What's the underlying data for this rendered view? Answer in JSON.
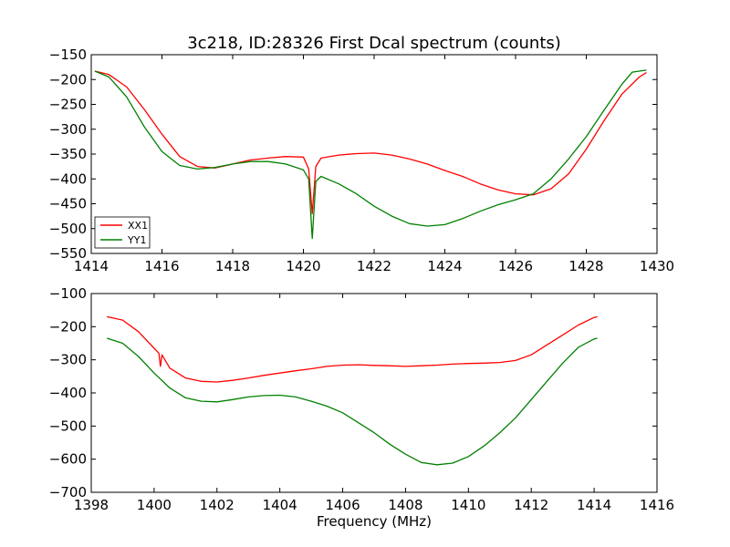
{
  "chart_data": [
    {
      "type": "line",
      "title": "3c218, ID:28326 First Dcal spectrum (counts)",
      "xlabel": "",
      "ylabel": "",
      "xlim": [
        1414,
        1430
      ],
      "ylim": [
        -550,
        -150
      ],
      "xticks": [
        "1414",
        "1416",
        "1418",
        "1420",
        "1422",
        "1424",
        "1426",
        "1428",
        "1430"
      ],
      "yticks": [
        "−550",
        "−500",
        "−450",
        "−400",
        "−350",
        "−300",
        "−250",
        "−200",
        "−150"
      ],
      "grid": false,
      "legend": {
        "position": "lower-left",
        "entries": [
          "XX1",
          "YY1"
        ]
      },
      "series": [
        {
          "name": "XX1",
          "color": "#ff0000",
          "points": [
            [
              1414.1,
              -183
            ],
            [
              1414.5,
              -190
            ],
            [
              1415.0,
              -215
            ],
            [
              1415.5,
              -260
            ],
            [
              1416.0,
              -310
            ],
            [
              1416.5,
              -355
            ],
            [
              1417.0,
              -375
            ],
            [
              1417.5,
              -378
            ],
            [
              1418.0,
              -370
            ],
            [
              1418.5,
              -362
            ],
            [
              1419.0,
              -358
            ],
            [
              1419.5,
              -355
            ],
            [
              1420.0,
              -356
            ],
            [
              1420.15,
              -380
            ],
            [
              1420.25,
              -470
            ],
            [
              1420.35,
              -375
            ],
            [
              1420.5,
              -358
            ],
            [
              1421.0,
              -352
            ],
            [
              1421.5,
              -349
            ],
            [
              1422.0,
              -348
            ],
            [
              1422.5,
              -352
            ],
            [
              1423.0,
              -360
            ],
            [
              1423.5,
              -370
            ],
            [
              1424.0,
              -383
            ],
            [
              1424.5,
              -395
            ],
            [
              1425.0,
              -410
            ],
            [
              1425.5,
              -422
            ],
            [
              1426.0,
              -430
            ],
            [
              1426.5,
              -432
            ],
            [
              1427.0,
              -420
            ],
            [
              1427.5,
              -390
            ],
            [
              1428.0,
              -340
            ],
            [
              1428.5,
              -283
            ],
            [
              1429.0,
              -230
            ],
            [
              1429.5,
              -195
            ],
            [
              1429.7,
              -186
            ]
          ]
        },
        {
          "name": "YY1",
          "color": "#008000",
          "points": [
            [
              1414.1,
              -183
            ],
            [
              1414.5,
              -195
            ],
            [
              1415.0,
              -235
            ],
            [
              1415.5,
              -295
            ],
            [
              1416.0,
              -345
            ],
            [
              1416.5,
              -373
            ],
            [
              1417.0,
              -380
            ],
            [
              1417.5,
              -377
            ],
            [
              1418.0,
              -370
            ],
            [
              1418.5,
              -365
            ],
            [
              1419.0,
              -365
            ],
            [
              1419.5,
              -370
            ],
            [
              1420.0,
              -382
            ],
            [
              1420.15,
              -400
            ],
            [
              1420.25,
              -520
            ],
            [
              1420.35,
              -405
            ],
            [
              1420.5,
              -395
            ],
            [
              1421.0,
              -410
            ],
            [
              1421.5,
              -430
            ],
            [
              1422.0,
              -455
            ],
            [
              1422.5,
              -475
            ],
            [
              1423.0,
              -490
            ],
            [
              1423.5,
              -495
            ],
            [
              1424.0,
              -492
            ],
            [
              1424.5,
              -480
            ],
            [
              1425.0,
              -465
            ],
            [
              1425.5,
              -452
            ],
            [
              1426.0,
              -442
            ],
            [
              1426.5,
              -430
            ],
            [
              1427.0,
              -400
            ],
            [
              1427.5,
              -360
            ],
            [
              1428.0,
              -315
            ],
            [
              1428.5,
              -262
            ],
            [
              1429.0,
              -210
            ],
            [
              1429.3,
              -185
            ],
            [
              1429.7,
              -181
            ]
          ]
        }
      ]
    },
    {
      "type": "line",
      "title": "",
      "xlabel": "Frequency (MHz)",
      "ylabel": "",
      "xlim": [
        1398,
        1416
      ],
      "ylim": [
        -700,
        -100
      ],
      "xticks": [
        "1398",
        "1400",
        "1402",
        "1404",
        "1406",
        "1408",
        "1410",
        "1412",
        "1414",
        "1416"
      ],
      "yticks": [
        "−700",
        "−600",
        "−500",
        "−400",
        "−300",
        "−200",
        "−100"
      ],
      "grid": false,
      "series": [
        {
          "color": "#ff0000",
          "points": [
            [
              1398.5,
              -170
            ],
            [
              1399.0,
              -180
            ],
            [
              1399.5,
              -215
            ],
            [
              1400.0,
              -265
            ],
            [
              1400.15,
              -280
            ],
            [
              1400.2,
              -320
            ],
            [
              1400.25,
              -285
            ],
            [
              1400.5,
              -325
            ],
            [
              1401.0,
              -355
            ],
            [
              1401.5,
              -365
            ],
            [
              1402.0,
              -367
            ],
            [
              1402.5,
              -362
            ],
            [
              1403.0,
              -355
            ],
            [
              1403.5,
              -347
            ],
            [
              1404.0,
              -340
            ],
            [
              1404.5,
              -333
            ],
            [
              1405.0,
              -327
            ],
            [
              1405.5,
              -320
            ],
            [
              1406.0,
              -316
            ],
            [
              1406.5,
              -315
            ],
            [
              1407.0,
              -317
            ],
            [
              1407.5,
              -318
            ],
            [
              1408.0,
              -320
            ],
            [
              1408.5,
              -318
            ],
            [
              1409.0,
              -316
            ],
            [
              1409.5,
              -313
            ],
            [
              1410.0,
              -311
            ],
            [
              1410.5,
              -310
            ],
            [
              1411.0,
              -308
            ],
            [
              1411.5,
              -302
            ],
            [
              1412.0,
              -285
            ],
            [
              1412.5,
              -255
            ],
            [
              1413.0,
              -225
            ],
            [
              1413.5,
              -195
            ],
            [
              1414.0,
              -172
            ],
            [
              1414.1,
              -170
            ]
          ]
        },
        {
          "color": "#008000",
          "points": [
            [
              1398.5,
              -235
            ],
            [
              1399.0,
              -250
            ],
            [
              1399.5,
              -290
            ],
            [
              1400.0,
              -340
            ],
            [
              1400.5,
              -385
            ],
            [
              1401.0,
              -415
            ],
            [
              1401.5,
              -425
            ],
            [
              1402.0,
              -427
            ],
            [
              1402.5,
              -420
            ],
            [
              1403.0,
              -412
            ],
            [
              1403.5,
              -408
            ],
            [
              1404.0,
              -407
            ],
            [
              1404.5,
              -412
            ],
            [
              1405.0,
              -425
            ],
            [
              1405.5,
              -440
            ],
            [
              1406.0,
              -460
            ],
            [
              1406.5,
              -490
            ],
            [
              1407.0,
              -520
            ],
            [
              1407.5,
              -555
            ],
            [
              1408.0,
              -585
            ],
            [
              1408.5,
              -610
            ],
            [
              1409.0,
              -617
            ],
            [
              1409.5,
              -612
            ],
            [
              1410.0,
              -592
            ],
            [
              1410.5,
              -560
            ],
            [
              1411.0,
              -520
            ],
            [
              1411.5,
              -475
            ],
            [
              1412.0,
              -420
            ],
            [
              1412.5,
              -365
            ],
            [
              1413.0,
              -310
            ],
            [
              1413.5,
              -262
            ],
            [
              1414.0,
              -237
            ],
            [
              1414.1,
              -235
            ]
          ]
        }
      ]
    }
  ]
}
